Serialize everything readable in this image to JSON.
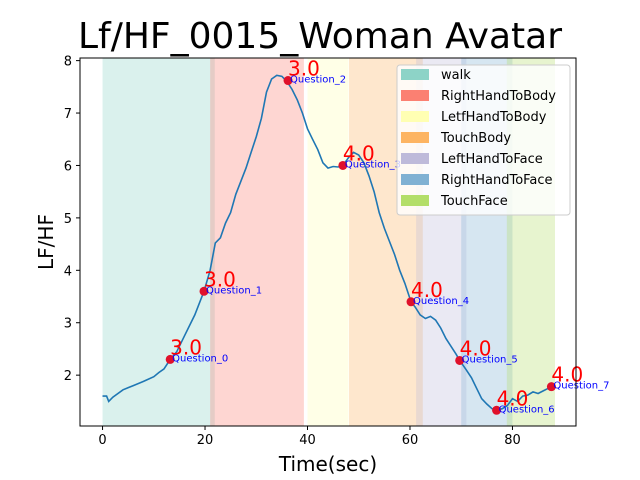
{
  "chart_data": {
    "type": "line",
    "title": "Lf/HF_0015_Woman Avatar",
    "xlabel": "Time(sec)",
    "ylabel": "LF/HF",
    "xlim": [
      -4.4,
      92.4
    ],
    "ylim": [
      1.03,
      8.05
    ],
    "xticks": [
      0,
      20,
      40,
      60,
      80
    ],
    "yticks": [
      2,
      3,
      4,
      5,
      6,
      7,
      8
    ],
    "line_color": "#1f77b4",
    "legend_position": "top-right",
    "legend": [
      {
        "label": "walk",
        "color": "#8dd3c7"
      },
      {
        "label": "RightHandToBody",
        "color": "#fb8072"
      },
      {
        "label": "LetfHandToBody",
        "color": "#ffffb3"
      },
      {
        "label": "TouchBody",
        "color": "#fdb462"
      },
      {
        "label": "LeftHandToFace",
        "color": "#bebada"
      },
      {
        "label": "RightHandToFace",
        "color": "#80b1d3"
      },
      {
        "label": "TouchFace",
        "color": "#b3de69"
      }
    ],
    "spans": [
      {
        "label": "walk",
        "start": 0.0,
        "end": 21.9,
        "color": "#8dd3c7"
      },
      {
        "label": "RightHandToBody",
        "start": 21.0,
        "end": 39.3,
        "color": "#fb8072"
      },
      {
        "label": "LetfHandToBody",
        "start": 40.0,
        "end": 48.0,
        "color": "#ffffb3"
      },
      {
        "label": "TouchBody",
        "start": 48.1,
        "end": 62.5,
        "color": "#fdb462"
      },
      {
        "label": "LeftHandToFace",
        "start": 61.2,
        "end": 71.0,
        "color": "#bebada"
      },
      {
        "label": "RightHandToFace",
        "start": 70.0,
        "end": 80.0,
        "color": "#80b1d3"
      },
      {
        "label": "TouchFace",
        "start": 78.9,
        "end": 88.3,
        "color": "#b3de69"
      }
    ],
    "series": [
      {
        "points": [
          [
            0,
            1.6
          ],
          [
            0.8,
            1.6
          ],
          [
            1.2,
            1.5
          ],
          [
            2,
            1.58
          ],
          [
            4,
            1.72
          ],
          [
            6,
            1.8
          ],
          [
            8,
            1.88
          ],
          [
            10,
            1.97
          ],
          [
            11,
            2.05
          ],
          [
            12,
            2.12
          ],
          [
            13.2,
            2.3
          ],
          [
            14.5,
            2.45
          ],
          [
            16,
            2.75
          ],
          [
            18,
            3.15
          ],
          [
            19.8,
            3.6
          ],
          [
            21,
            4.0
          ],
          [
            22,
            4.52
          ],
          [
            23,
            4.62
          ],
          [
            24,
            4.9
          ],
          [
            25,
            5.1
          ],
          [
            26,
            5.45
          ],
          [
            27,
            5.7
          ],
          [
            28,
            5.95
          ],
          [
            29,
            6.25
          ],
          [
            30,
            6.55
          ],
          [
            31,
            6.9
          ],
          [
            32,
            7.4
          ],
          [
            33,
            7.65
          ],
          [
            34,
            7.72
          ],
          [
            35,
            7.7
          ],
          [
            36,
            7.6
          ],
          [
            37,
            7.45
          ],
          [
            38,
            7.25
          ],
          [
            39,
            7.0
          ],
          [
            40,
            6.7
          ],
          [
            41,
            6.5
          ],
          [
            42,
            6.3
          ],
          [
            43,
            6.05
          ],
          [
            44,
            5.95
          ],
          [
            45,
            5.98
          ],
          [
            46,
            5.97
          ],
          [
            46.9,
            6.0
          ],
          [
            48,
            6.15
          ],
          [
            49,
            6.25
          ],
          [
            50,
            6.2
          ],
          [
            51,
            6.05
          ],
          [
            52,
            5.8
          ],
          [
            53,
            5.5
          ],
          [
            54,
            5.1
          ],
          [
            55,
            4.8
          ],
          [
            56,
            4.55
          ],
          [
            57,
            4.3
          ],
          [
            58,
            4.0
          ],
          [
            59,
            3.75
          ],
          [
            60.2,
            3.4
          ],
          [
            61,
            3.3
          ],
          [
            62,
            3.15
          ],
          [
            63,
            3.08
          ],
          [
            64,
            3.12
          ],
          [
            65,
            3.05
          ],
          [
            66,
            2.9
          ],
          [
            67,
            2.7
          ],
          [
            68,
            2.55
          ],
          [
            69,
            2.4
          ],
          [
            69.7,
            2.28
          ],
          [
            71,
            2.1
          ],
          [
            72,
            1.95
          ],
          [
            73,
            1.75
          ],
          [
            74,
            1.55
          ],
          [
            75,
            1.45
          ],
          [
            76,
            1.36
          ],
          [
            76.9,
            1.33
          ],
          [
            78,
            1.36
          ],
          [
            79,
            1.42
          ],
          [
            80,
            1.55
          ],
          [
            81,
            1.5
          ],
          [
            82,
            1.6
          ],
          [
            83,
            1.62
          ],
          [
            84,
            1.68
          ],
          [
            85,
            1.65
          ],
          [
            86,
            1.7
          ],
          [
            87,
            1.75
          ],
          [
            87.6,
            1.78
          ]
        ]
      }
    ],
    "markers": [
      {
        "x": 13.2,
        "y": 2.3,
        "label": "Question_0",
        "score": "3.0"
      },
      {
        "x": 19.8,
        "y": 3.6,
        "label": "Question_1",
        "score": "3.0"
      },
      {
        "x": 36.2,
        "y": 7.62,
        "label": "Question_2",
        "score": "3.0"
      },
      {
        "x": 46.9,
        "y": 6.0,
        "label": "Question_3",
        "score": "4.0"
      },
      {
        "x": 60.2,
        "y": 3.4,
        "label": "Question_4",
        "score": "4.0"
      },
      {
        "x": 69.7,
        "y": 2.28,
        "label": "Question_5",
        "score": "4.0"
      },
      {
        "x": 76.9,
        "y": 1.33,
        "label": "Question_6",
        "score": "4.0"
      },
      {
        "x": 87.6,
        "y": 1.78,
        "label": "Question_7",
        "score": "4.0"
      }
    ]
  }
}
